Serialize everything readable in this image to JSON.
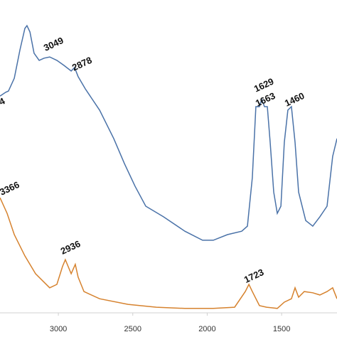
{
  "chart_data": {
    "type": "line",
    "xlim": [
      3392,
      1128
    ],
    "ylim": [
      0,
      100
    ],
    "xticks": [
      3000,
      2500,
      2000,
      1500
    ],
    "series": [
      {
        "color": "#4a72a8",
        "x": [
          3392,
          3354,
          3335,
          3296,
          3258,
          3225,
          3211,
          3191,
          3163,
          3129,
          3096,
          3058,
          3010,
          2962,
          2914,
          2891,
          2867,
          2819,
          2723,
          2628,
          2556,
          2485,
          2413,
          2294,
          2150,
          2031,
          1959,
          1864,
          1768,
          1730,
          1697,
          1673,
          1649,
          1634,
          1615,
          1596,
          1577,
          1553,
          1529,
          1505,
          1482,
          1458,
          1434,
          1410,
          1386,
          1338,
          1291,
          1243,
          1195,
          1157,
          1128
        ],
        "values": [
          69.3,
          70.5,
          70.9,
          75,
          84.1,
          90.9,
          91.8,
          89.8,
          83,
          80.7,
          81.4,
          81.8,
          80.7,
          79.1,
          77.3,
          78.4,
          75.5,
          71.6,
          64.8,
          55.7,
          47.7,
          40.5,
          34.1,
          30.7,
          26.1,
          23.2,
          23.2,
          25,
          26.1,
          27.7,
          43.2,
          65.9,
          65.9,
          68.2,
          65.9,
          65.9,
          54.5,
          38.6,
          31.8,
          34.1,
          54.5,
          64.8,
          65.9,
          54.5,
          38.6,
          29.5,
          27.7,
          30.7,
          34.1,
          50,
          55.7
        ]
      },
      {
        "color": "#d6822e",
        "x": [
          3392,
          3344,
          3296,
          3225,
          3153,
          3058,
          3010,
          2972,
          2953,
          2934,
          2914,
          2886,
          2867,
          2828,
          2723,
          2532,
          2341,
          2150,
          1959,
          1816,
          1744,
          1720,
          1697,
          1649,
          1601,
          1529,
          1482,
          1434,
          1410,
          1386,
          1348,
          1291,
          1243,
          1195,
          1157,
          1128
        ],
        "values": [
          36.8,
          31.8,
          25,
          18.2,
          12.5,
          8,
          9.1,
          14.8,
          17,
          14.8,
          12.5,
          15.5,
          11.4,
          6.8,
          4.5,
          2.7,
          1.8,
          1.4,
          1.4,
          1.8,
          6.8,
          9.1,
          6.8,
          2.3,
          1.8,
          1.4,
          3.4,
          4.5,
          8,
          5,
          6.8,
          6.4,
          5.7,
          6.8,
          8,
          4.5
        ]
      }
    ],
    "annotations": [
      {
        "x": 3354,
        "y": 67,
        "label": "4"
      },
      {
        "x": 3086,
        "y": 83.6,
        "label": "3049"
      },
      {
        "x": 2895,
        "y": 77.3,
        "label": "2878"
      },
      {
        "x": 1673,
        "y": 70.5,
        "label": "1629"
      },
      {
        "x": 1663,
        "y": 65.9,
        "label": "1663"
      },
      {
        "x": 1467,
        "y": 65.9,
        "label": "1460"
      },
      {
        "x": 3382,
        "y": 37.5,
        "label": "3366"
      },
      {
        "x": 2972,
        "y": 18.6,
        "label": "2936"
      },
      {
        "x": 1740,
        "y": 9.5,
        "label": "1723"
      }
    ]
  }
}
